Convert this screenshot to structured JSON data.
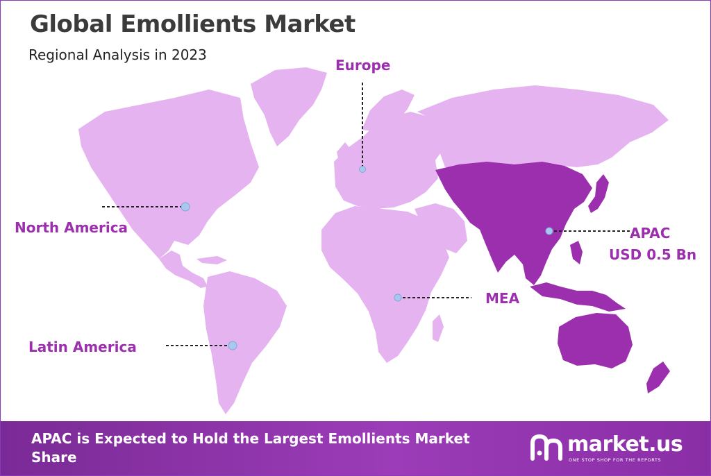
{
  "header": {
    "title": "Global Emollients Market",
    "subtitle": "Regional Analysis in 2023"
  },
  "regions": [
    {
      "key": "north_america",
      "label": "North America",
      "value": "",
      "highlighted": false
    },
    {
      "key": "europe",
      "label": "Europe",
      "value": "",
      "highlighted": false
    },
    {
      "key": "apac",
      "label": "APAC",
      "value": "USD 0.5 Bn",
      "highlighted": true
    },
    {
      "key": "mea",
      "label": "MEA",
      "value": "",
      "highlighted": false
    },
    {
      "key": "latin_america",
      "label": "Latin America",
      "value": "",
      "highlighted": false
    }
  ],
  "footer": {
    "statement": "APAC is Expected to Hold the Largest Emollients Market Share",
    "brand": "market.us",
    "tagline": "ONE STOP SHOP FOR THE REPORTS"
  },
  "colors": {
    "land": "#e5b3ef",
    "highlight": "#9b2fae",
    "label": "#9b2fae",
    "marker": "#a9c8ef",
    "footer": "#8a2ea6"
  }
}
